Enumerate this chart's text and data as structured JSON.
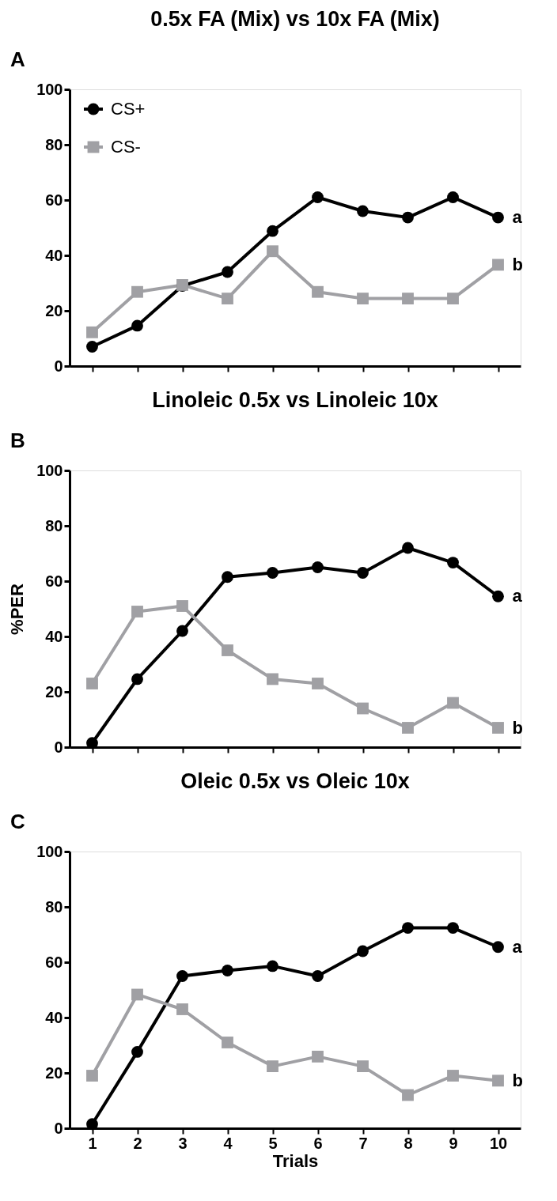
{
  "chart_data": [
    {
      "type": "line",
      "title": "0.5x FA (Mix) vs 10x FA (Mix)",
      "categories": [
        null,
        null,
        null,
        null,
        null,
        null,
        null,
        null,
        null,
        null
      ],
      "tick_labels": "y",
      "ylim": [
        0,
        100
      ],
      "yticks": [
        0,
        20,
        40,
        60,
        80,
        100
      ],
      "grid": false,
      "legend": "top left",
      "line_style": "solid",
      "series": [
        {
          "name": "CS+",
          "color": "#000000",
          "marker": "circle",
          "values": [
            7,
            14.6,
            29,
            34,
            48.8,
            61,
            56,
            53.7,
            61,
            53.7
          ]
        },
        {
          "name": "CS-",
          "color": "#a0a0a4",
          "marker": "square",
          "values": [
            12.2,
            26.8,
            29.3,
            24.4,
            41.5,
            26.8,
            24.4,
            24.4,
            24.4,
            36.6
          ]
        }
      ],
      "annotations": [
        "A",
        "a",
        "b"
      ]
    },
    {
      "type": "line",
      "title": "Linoleic 0.5x vs Linoleic 10x",
      "ylabel": "%PER",
      "categories": [
        null,
        null,
        null,
        null,
        null,
        null,
        null,
        null,
        null,
        null
      ],
      "tick_labels": "y",
      "ylim": [
        0,
        100
      ],
      "yticks": [
        0,
        20,
        40,
        60,
        80,
        100
      ],
      "grid": false,
      "line_style": "solid",
      "series": [
        {
          "color": "#000000",
          "marker": "circle",
          "values": [
            1.5,
            24.6,
            42,
            61.5,
            63,
            65,
            63,
            72,
            66.7,
            54.5
          ]
        },
        {
          "color": "#a0a0a4",
          "marker": "square",
          "values": [
            23,
            49,
            51,
            35,
            24.6,
            23,
            14,
            7,
            16,
            7
          ]
        }
      ],
      "annotations": [
        "B",
        "a",
        "b"
      ]
    },
    {
      "type": "line",
      "title": "Oleic 0.5x vs Oleic 10x",
      "xlabel": "Trials",
      "categories": [
        "1",
        "2",
        "3",
        "4",
        "5",
        "6",
        "7",
        "8",
        "9",
        "10"
      ],
      "ylim": [
        0,
        100
      ],
      "yticks": [
        0,
        20,
        40,
        60,
        80,
        100
      ],
      "grid": false,
      "line_style": "solid",
      "series": [
        {
          "color": "#000000",
          "marker": "circle",
          "values": [
            1.5,
            27.6,
            55,
            57,
            58.6,
            55,
            64,
            72.4,
            72.4,
            65.5
          ]
        },
        {
          "color": "#a0a0a4",
          "marker": "square",
          "values": [
            19,
            48.3,
            43,
            31,
            22.4,
            25.9,
            22.4,
            12,
            19,
            17.2
          ]
        }
      ],
      "annotations": [
        "C",
        {
          "text": "a",
          "x": "10",
          "y": 65.5
        },
        {
          "text": "b",
          "x": "10",
          "y": 17.2
        }
      ]
    }
  ]
}
